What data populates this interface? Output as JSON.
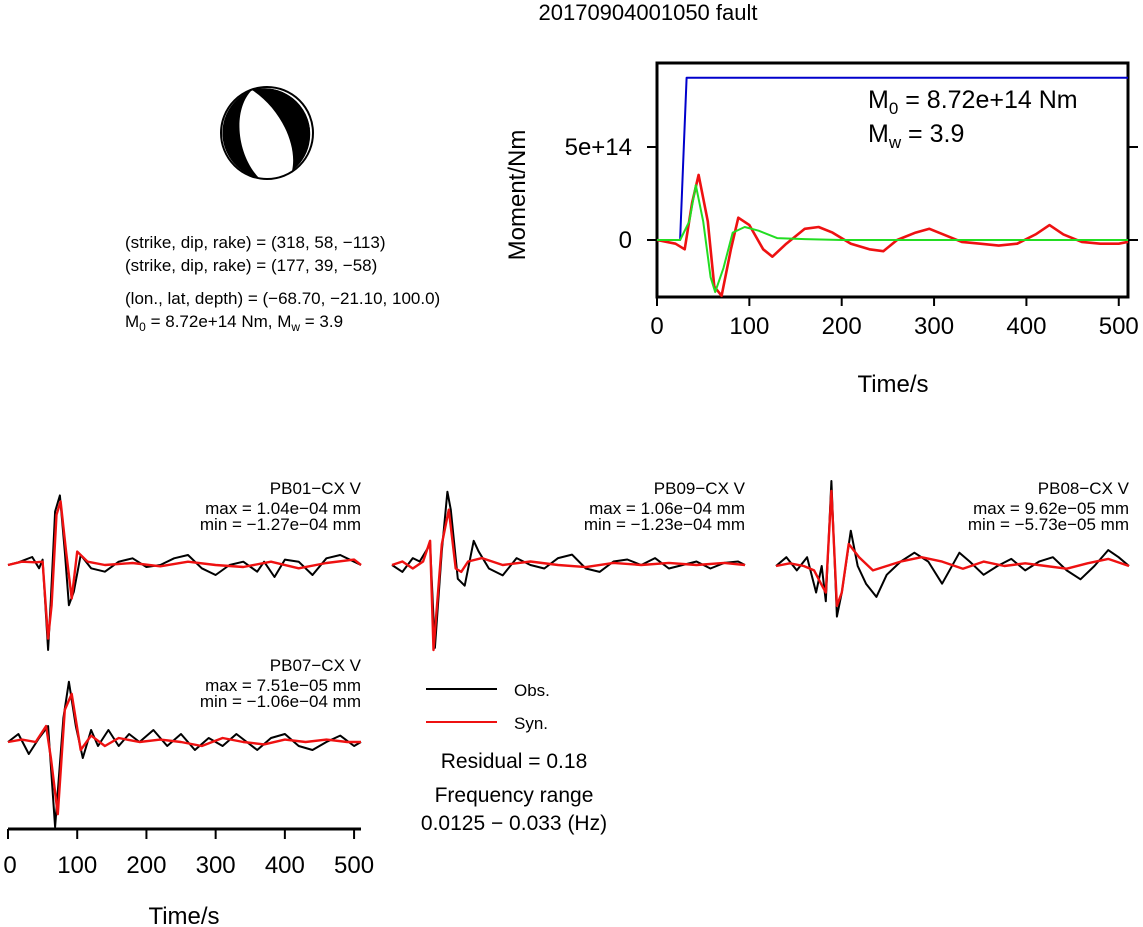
{
  "title": "20170904001050 fault",
  "mechanism": {
    "line1": "(strike, dip, rake) = (318, 58, −113)",
    "line2": "(strike, dip, rake) = (177, 39, −58)",
    "line3": "(lon., lat, depth) = (−68.70, −21.10, 100.0)",
    "m0_label": "M",
    "m0_sub": "0",
    "m0_value": " = 8.72e+14 Nm, M",
    "mw_sub": "w",
    "mw_value": " = 3.9"
  },
  "moment_panel": {
    "ylabel": "Moment/Nm",
    "xlabel": "Time/s",
    "m0_prefix": "M",
    "m0_sub": "0",
    "m0_text": " = 8.72e+14 Nm",
    "mw_prefix": "M",
    "mw_sub": "w",
    "mw_text": " = 3.9"
  },
  "waveform_axis": {
    "xlabel": "Time/s"
  },
  "legend": {
    "obs": "Obs.",
    "syn": "Syn.",
    "residual": "Residual = 0.18",
    "freq_title": "Frequency range",
    "freq_value": "0.0125 − 0.033 (Hz)"
  },
  "stations": [
    {
      "name": "PB01−CX V",
      "max": "max = 1.04e−04 mm",
      "min": "min = −1.27e−04 mm"
    },
    {
      "name": "PB09−CX V",
      "max": "max = 1.06e−04 mm",
      "min": "min = −1.23e−04 mm"
    },
    {
      "name": "PB08−CX V",
      "max": "max = 9.62e−05 mm",
      "min": "min = −5.73e−05 mm"
    },
    {
      "name": "PB07−CX V",
      "max": "max = 7.51e−05 mm",
      "min": "min = −1.06e−04 mm"
    }
  ],
  "colors": {
    "obs": "#000000",
    "syn": "#ee1111",
    "stf": "#0000cc",
    "green": "#22dd22"
  },
  "chart_data": [
    {
      "type": "line",
      "xlabel": "Time/s",
      "ylabel": "Moment/Nm",
      "xlim": [
        0,
        510
      ],
      "ylim": [
        -600000000000000.0,
        1000000000000000.0
      ],
      "xticks": [
        "0",
        "100",
        "200",
        "300",
        "400",
        "500"
      ],
      "yticks": [
        "0",
        "5e+14"
      ],
      "series": [
        {
          "color": "blue",
          "x": [
            0,
            25,
            29,
            32,
            510
          ],
          "y": [
            0,
            0,
            500000000000000.0,
            872000000000000.0,
            872000000000000.0
          ]
        },
        {
          "color": "red",
          "x": [
            0,
            20,
            30,
            38,
            45,
            55,
            62,
            70,
            80,
            88,
            100,
            115,
            125,
            140,
            160,
            175,
            190,
            210,
            230,
            245,
            260,
            280,
            295,
            310,
            330,
            350,
            370,
            390,
            410,
            425,
            440,
            460,
            480,
            500,
            510
          ],
          "y": [
            0,
            -20000000000000.0,
            -50000000000000.0,
            200000000000000.0,
            350000000000000.0,
            100000000000000.0,
            -250000000000000.0,
            -300000000000000.0,
            -50000000000000.0,
            120000000000000.0,
            80000000000000.0,
            -50000000000000.0,
            -90000000000000.0,
            -20000000000000.0,
            60000000000000.0,
            70000000000000.0,
            40000000000000.0,
            -20000000000000.0,
            -50000000000000.0,
            -60000000000000.0,
            0,
            40000000000000.0,
            60000000000000.0,
            30000000000000.0,
            -10000000000000.0,
            -20000000000000.0,
            -30000000000000.0,
            -20000000000000.0,
            30000000000000.0,
            80000000000000.0,
            30000000000000.0,
            -10000000000000.0,
            -20000000000000.0,
            -20000000000000.0,
            -10000000000000.0
          ]
        },
        {
          "color": "green",
          "x": [
            0,
            25,
            35,
            42,
            50,
            58,
            63,
            72,
            82,
            95,
            110,
            130,
            160,
            200,
            510
          ],
          "y": [
            0,
            0,
            100000000000000.0,
            295000000000000.0,
            100000000000000.0,
            -200000000000000.0,
            -280000000000000.0,
            -150000000000000.0,
            40000000000000.0,
            70000000000000.0,
            50000000000000.0,
            10000000000000.0,
            5000000000000.0,
            0,
            0
          ]
        }
      ]
    },
    {
      "type": "line",
      "station": "PB01−CX V",
      "xlim": [
        0,
        510
      ],
      "ylim": [
        -0.000127,
        0.000104
      ],
      "series": [
        {
          "name": "Obs.",
          "x": [
            0,
            15,
            35,
            45,
            50,
            58,
            62,
            68,
            75,
            82,
            88,
            95,
            105,
            120,
            140,
            160,
            180,
            200,
            220,
            240,
            260,
            280,
            300,
            320,
            340,
            360,
            370,
            385,
            400,
            420,
            440,
            460,
            480,
            500,
            510
          ],
          "y": [
            0,
            4e-06,
            1.2e-05,
            -5e-06,
            8e-06,
            -0.000127,
            -5e-05,
            8e-05,
            0.000104,
            2e-05,
            -6e-05,
            -4e-05,
            1.5e-05,
            -5e-06,
            -1e-05,
            5e-06,
            1e-05,
            -3e-06,
            0,
            1e-05,
            1.5e-05,
            -5e-06,
            -1.5e-05,
            0,
            5e-06,
            -1e-05,
            5e-06,
            -1.8e-05,
            8e-06,
            5e-06,
            -1.5e-05,
            1e-05,
            1.5e-05,
            5e-06,
            0
          ]
        },
        {
          "name": "Syn.",
          "x": [
            0,
            20,
            40,
            50,
            58,
            63,
            70,
            76,
            84,
            92,
            100,
            115,
            140,
            180,
            220,
            260,
            300,
            340,
            380,
            420,
            460,
            500,
            510
          ],
          "y": [
            0,
            5e-06,
            4e-06,
            5e-06,
            -0.00011,
            -6e-05,
            7.5e-05,
            9.5e-05,
            2e-05,
            -5e-05,
            2e-05,
            5e-06,
            0,
            3e-06,
            -2e-06,
            5e-06,
            0,
            -3e-06,
            5e-06,
            -5e-06,
            3e-06,
            8e-06,
            0
          ]
        }
      ]
    },
    {
      "type": "line",
      "station": "PB09−CX V",
      "xlim": [
        0,
        510
      ],
      "ylim": [
        -0.000123,
        0.000106
      ],
      "series": [
        {
          "name": "Obs.",
          "x": [
            0,
            15,
            30,
            40,
            55,
            62,
            72,
            80,
            85,
            95,
            105,
            118,
            125,
            140,
            160,
            180,
            200,
            220,
            240,
            260,
            280,
            300,
            320,
            340,
            360,
            380,
            400,
            420,
            440,
            460,
            480,
            500,
            510
          ],
          "y": [
            0,
            -1e-05,
            1e-05,
            5e-06,
            3e-05,
            -0.00012,
            2e-05,
            0.000106,
            8e-05,
            -2e-05,
            -3e-05,
            3.5e-05,
            2e-05,
            -5e-06,
            -1.5e-05,
            1e-05,
            0,
            -5e-06,
            1e-05,
            1.5e-05,
            -5e-06,
            -1e-05,
            5e-06,
            8e-06,
            0,
            1e-05,
            -5e-06,
            0,
            5e-06,
            -5e-06,
            3e-06,
            5e-06,
            0
          ]
        },
        {
          "name": "Syn.",
          "x": [
            0,
            15,
            30,
            45,
            55,
            60,
            72,
            82,
            92,
            100,
            110,
            130,
            160,
            200,
            240,
            280,
            320,
            360,
            400,
            440,
            480,
            510
          ],
          "y": [
            0,
            5e-06,
            -5e-06,
            5e-06,
            3.5e-05,
            -0.000123,
            3e-05,
            8e-05,
            -5e-06,
            -1e-05,
            5e-06,
            1e-05,
            0,
            5e-06,
            0,
            -3e-06,
            3e-06,
            0,
            3e-06,
            0,
            3e-06,
            0
          ]
        }
      ]
    },
    {
      "type": "line",
      "station": "PB08−CX V",
      "xlim": [
        0,
        510
      ],
      "ylim": [
        -5.73e-05,
        9.62e-05
      ],
      "series": [
        {
          "name": "Obs.",
          "x": [
            0,
            15,
            30,
            45,
            58,
            66,
            72,
            80,
            88,
            95,
            108,
            118,
            130,
            145,
            160,
            180,
            200,
            220,
            240,
            265,
            280,
            300,
            320,
            340,
            360,
            380,
            400,
            420,
            440,
            460,
            480,
            495,
            510
          ],
          "y": [
            0,
            1e-05,
            -5e-06,
            1e-05,
            -3e-05,
            0,
            -4e-05,
            9.62e-05,
            -5.73e-05,
            -3e-05,
            4e-05,
            0,
            -2e-05,
            -3.5e-05,
            -1e-05,
            5e-06,
            1.5e-05,
            5e-06,
            -2e-05,
            1.5e-05,
            5e-06,
            -1e-05,
            0,
            8e-06,
            -5e-06,
            5e-06,
            1e-05,
            -5e-06,
            -1.5e-05,
            0,
            1.8e-05,
            1e-05,
            0
          ]
        },
        {
          "name": "Syn.",
          "x": [
            0,
            20,
            40,
            55,
            65,
            72,
            80,
            88,
            95,
            105,
            120,
            140,
            160,
            180,
            210,
            240,
            270,
            300,
            330,
            360,
            390,
            420,
            450,
            480,
            510
          ],
          "y": [
            0,
            3e-06,
            0,
            -5e-06,
            -2e-05,
            -3e-05,
            8.5e-05,
            -4.5e-05,
            -3e-05,
            2.5e-05,
            1e-05,
            -5e-06,
            0,
            5e-06,
            1e-05,
            5e-06,
            -3e-06,
            5e-06,
            0,
            3e-06,
            0,
            -3e-06,
            3e-06,
            8e-06,
            0
          ]
        }
      ]
    },
    {
      "type": "line",
      "station": "PB07−CX V",
      "xlim": [
        0,
        510
      ],
      "ylim": [
        -0.000106,
        7.51e-05
      ],
      "xlabel": "Time/s",
      "xticks": [
        "0",
        "100",
        "200",
        "300",
        "400",
        "500"
      ],
      "series": [
        {
          "name": "Obs.",
          "x": [
            0,
            15,
            30,
            45,
            58,
            68,
            80,
            88,
            98,
            108,
            120,
            130,
            145,
            160,
            175,
            190,
            210,
            230,
            250,
            270,
            290,
            310,
            330,
            345,
            360,
            380,
            400,
            420,
            440,
            460,
            480,
            500,
            510
          ],
          "y": [
            0,
            1e-05,
            -1.5e-05,
            5e-06,
            2e-05,
            -0.000106,
            3e-05,
            7.51e-05,
            2e-05,
            -2e-05,
            1.5e-05,
            -5e-06,
            1.5e-05,
            -5e-06,
            1e-05,
            0,
            1.5e-05,
            -5e-06,
            1e-05,
            -1e-05,
            5e-06,
            -5e-06,
            1e-05,
            0,
            -1e-05,
            5e-06,
            1e-05,
            -5e-06,
            -1e-05,
            0,
            8e-06,
            -5e-06,
            0
          ]
        },
        {
          "name": "Syn.",
          "x": [
            0,
            20,
            40,
            55,
            62,
            72,
            82,
            92,
            105,
            120,
            140,
            160,
            190,
            220,
            250,
            280,
            310,
            340,
            370,
            400,
            430,
            460,
            490,
            510
          ],
          "y": [
            0,
            3e-06,
            0,
            2e-05,
            -2e-05,
            -9e-05,
            4e-05,
            6e-05,
            -1e-05,
            8e-06,
            -5e-06,
            5e-06,
            0,
            3e-06,
            0,
            -5e-06,
            5e-06,
            0,
            -3e-06,
            3e-06,
            0,
            3e-06,
            0,
            0
          ]
        }
      ]
    }
  ]
}
